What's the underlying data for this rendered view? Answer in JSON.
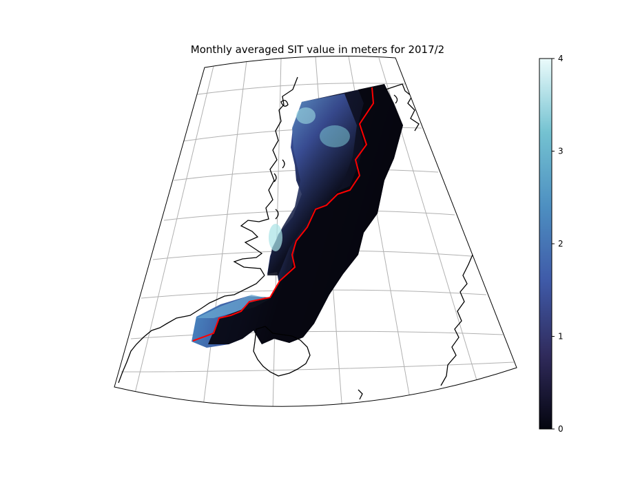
{
  "figure": {
    "title": "Monthly averaged SIT value in meters for 2017/2"
  },
  "map": {
    "type": "polar-projected sea ice thickness map",
    "graticule": "on",
    "coastline_color": "#000000",
    "ice_edge_line_color": "#ff0000",
    "colormap": "ice (dark navy → blue → pale cyan)"
  },
  "colorbar": {
    "range": [
      0,
      4
    ],
    "ticks": [
      "0",
      "1",
      "2",
      "3",
      "4"
    ],
    "color_stops": [
      "#04050f",
      "#302b5c",
      "#3f5aa8",
      "#4d8fc1",
      "#74c2d1",
      "#ebfbfb"
    ]
  }
}
